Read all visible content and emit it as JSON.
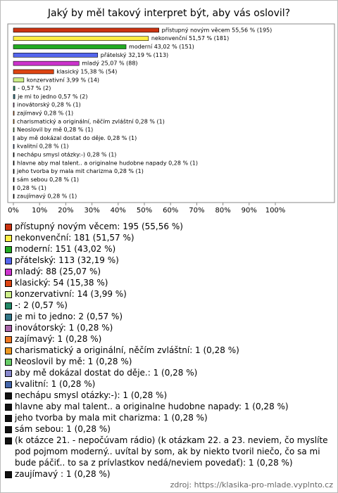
{
  "chart_data": {
    "type": "hbar",
    "title": "Jaký by měl takový interpret být, aby vás oslovil?",
    "values": [
      55.56,
      51.57,
      43.02,
      32.19,
      25.07,
      15.38,
      3.99,
      0.57,
      0.57,
      0.28,
      0.28,
      0.28,
      0.28,
      0.28,
      0.28,
      0.28,
      0.28,
      0.28,
      0.28,
      0.28,
      0.28
    ],
    "value_labels": [
      "přístupný novým věcem 55,56 % (195)",
      "nekonvenční 51,57 % (181)",
      "moderní 43,02 % (151)",
      "přátelský 32,19 % (113)",
      "mladý 25,07 % (88)",
      "klasický 15,38 % (54)",
      "konzervativní 3,99 % (14)",
      "- 0,57 % (2)",
      "je mi to jedno 0,57 % (2)",
      "inovátorský 0,28 % (1)",
      "zajímavý 0,28 % (1)",
      "charismatický a originální, něčím zvláštní 0,28 % (1)",
      "Neoslovil by mě 0,28 % (1)",
      "aby mě dokázal dostat do děje. 0,28 % (1)",
      "kvalitní 0,28 % (1)",
      "nechápu smysl otázky:-) 0,28 % (1)",
      "hlavne aby mal talent.. a originalne hudobne napady 0,28 % (1)",
      "jeho tvorba by mala mit charizma 0,28 % (1)",
      "sám sebou 0,28 % (1)",
      "0,28 % (1)",
      "zaujímavý  0,28 % (1)"
    ],
    "colors": [
      "#cc3311",
      "#ffee44",
      "#22aa22",
      "#5566ee",
      "#cc33cc",
      "#dd4411",
      "#ccee88",
      "#228866",
      "#337788",
      "#aa66aa",
      "#ee7722",
      "#ee9922",
      "#66cc66",
      "#8888cc",
      "#4466aa",
      "#111111",
      "#111111",
      "#111111",
      "#111111",
      "#111111",
      "#111111"
    ],
    "legend": [
      "přístupný novým věcem: 195 (55,56 %)",
      "nekonvenční: 181 (51,57 %)",
      "moderní: 151 (43,02 %)",
      "přátelský: 113 (32,19 %)",
      "mladý: 88 (25,07 %)",
      "klasický: 54 (15,38 %)",
      "konzervativní: 14 (3,99 %)",
      "-: 2 (0,57 %)",
      "je mi to jedno: 2 (0,57 %)",
      "inovátorský: 1 (0,28 %)",
      "zajímavý: 1 (0,28 %)",
      "charismatický a originální, něčím zvláštní: 1 (0,28 %)",
      "Neoslovil by mě: 1 (0,28 %)",
      "aby mě dokázal dostat do děje.: 1 (0,28 %)",
      "kvalitní: 1 (0,28 %)",
      "nechápu smysl otázky:-): 1 (0,28 %)",
      "hlavne aby mal talent.. a originalne hudobne napady: 1 (0,28 %)",
      "jeho tvorba by mala mit charizma: 1 (0,28 %)",
      "sám sebou: 1 (0,28 %)",
      "(k otázce 21. - nepočúvam rádio) (k otázkam 22. a 23. neviem, čo myslíte pod pojmom moderný.. uvítal by som, ak by niekto tvoril niečo, čo sa mi bude páčiť.. to sa z prívlastkov nedá/neviem povedať): 1 (0,28 %)",
      "zaujímavý : 1 (0,28 %)"
    ],
    "xlim": [
      0,
      100
    ],
    "xticks": [
      {
        "value": 0,
        "label": "0%"
      },
      {
        "value": 10,
        "label": "10%"
      },
      {
        "value": 20,
        "label": "20%"
      },
      {
        "value": 30,
        "label": "30%"
      },
      {
        "value": 40,
        "label": "40%"
      },
      {
        "value": 50,
        "label": "50%"
      },
      {
        "value": 60,
        "label": "60%"
      },
      {
        "value": 70,
        "label": "70%"
      },
      {
        "value": 80,
        "label": "80%"
      },
      {
        "value": 90,
        "label": "90%"
      },
      {
        "value": 100,
        "label": "100%"
      }
    ],
    "grid": false,
    "source": "zdroj: https://klasika-pro-mlade.vyplnto.cz"
  }
}
